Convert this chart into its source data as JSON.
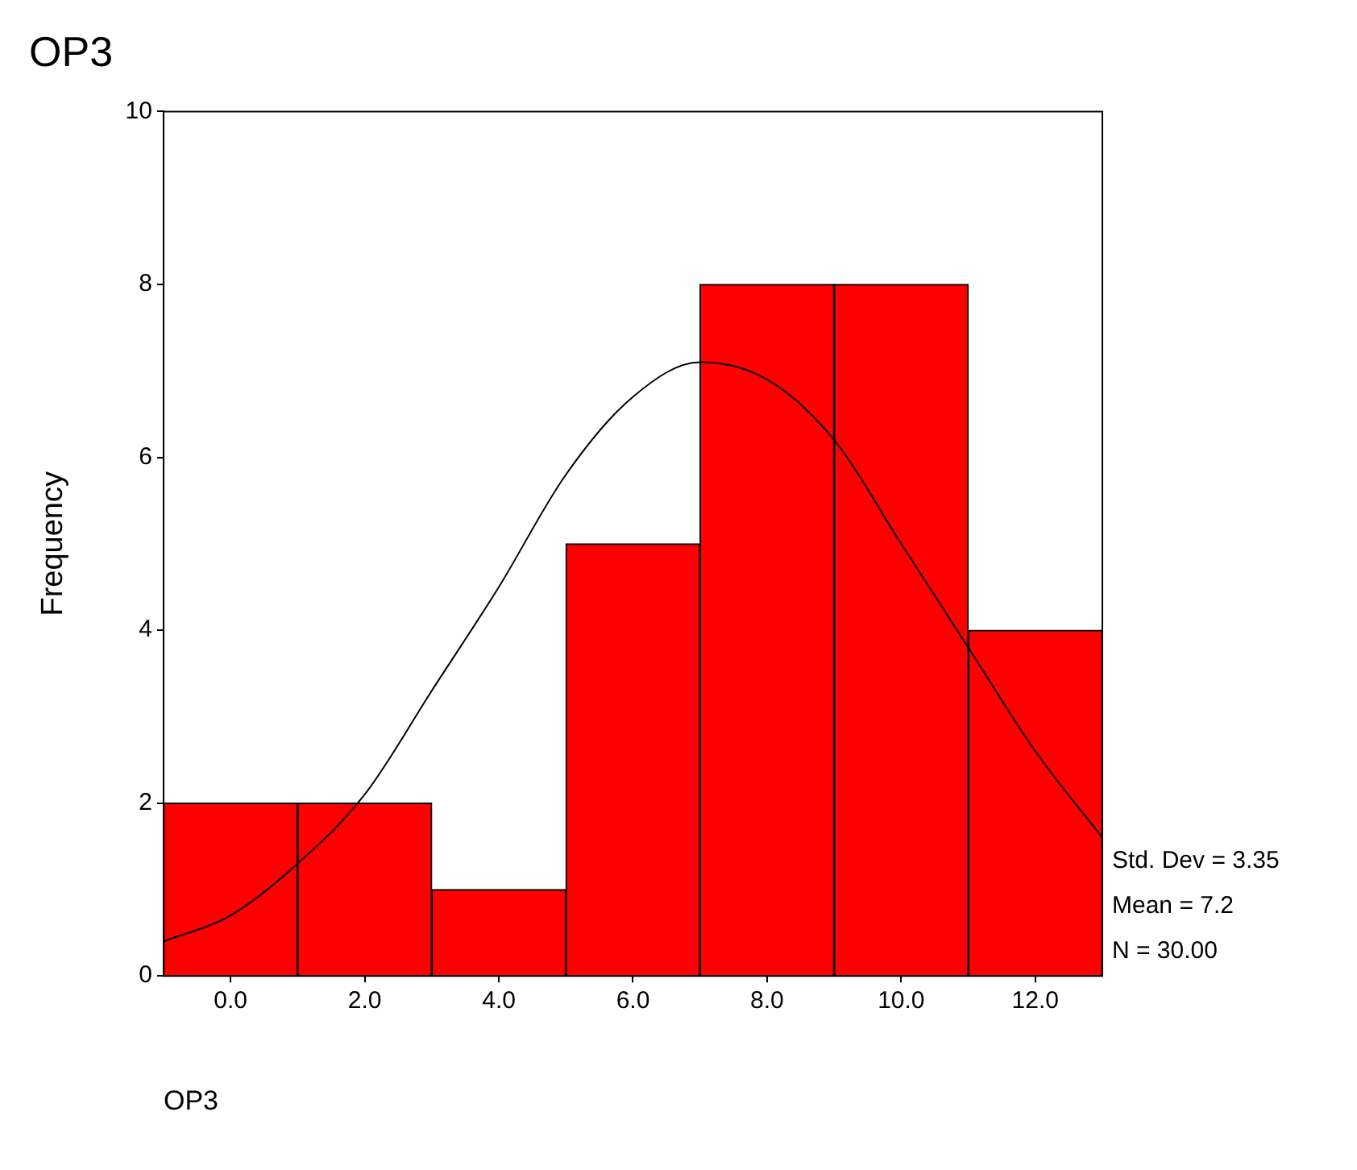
{
  "chart_data": {
    "type": "histogram",
    "title": "OP3",
    "xlabel": "OP3",
    "ylabel": "Frequency",
    "bins": [
      -1,
      1,
      3,
      5,
      7,
      9,
      11,
      13
    ],
    "values": [
      2,
      2,
      1,
      5,
      8,
      8,
      4
    ],
    "color": "#ff0000",
    "series": [
      {
        "type": "line",
        "color": "#000000",
        "x": [
          -1,
          0,
          1,
          2,
          3,
          4,
          5,
          6,
          7,
          8,
          9,
          10,
          11,
          12,
          13
        ],
        "values": [
          0.4,
          0.7,
          1.3,
          2.1,
          3.3,
          4.5,
          5.8,
          6.7,
          7.1,
          6.9,
          6.2,
          5.0,
          3.8,
          2.6,
          1.6
        ]
      }
    ],
    "xlim": [
      -1,
      13
    ],
    "xticks": [
      {
        "value": 0,
        "label": "0.0"
      },
      {
        "value": 2,
        "label": "2.0"
      },
      {
        "value": 4,
        "label": "4.0"
      },
      {
        "value": 6,
        "label": "6.0"
      },
      {
        "value": 8,
        "label": "8.0"
      },
      {
        "value": 10,
        "label": "10.0"
      },
      {
        "value": 12,
        "label": "12.0"
      }
    ],
    "ylim": [
      0,
      10
    ],
    "yticks": [
      0,
      2,
      4,
      6,
      8,
      10
    ],
    "annotations": [
      "Std. Dev = 3.35",
      "Mean = 7.2",
      "N = 30.00"
    ],
    "grid": false,
    "legend": false,
    "marker": "none",
    "line_style": "solid"
  }
}
